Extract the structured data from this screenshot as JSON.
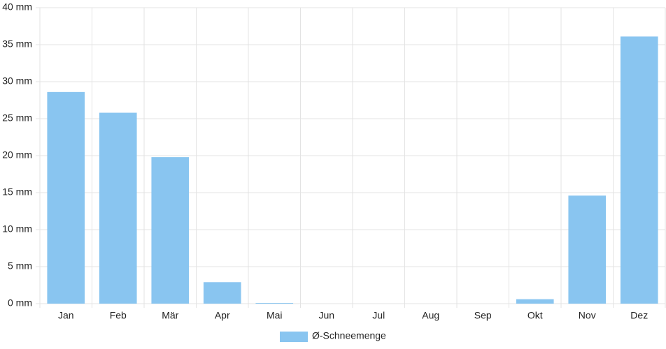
{
  "chart_data": {
    "type": "bar",
    "categories": [
      "Jan",
      "Feb",
      "Mär",
      "Apr",
      "Mai",
      "Jun",
      "Jul",
      "Aug",
      "Sep",
      "Okt",
      "Nov",
      "Dez"
    ],
    "series": [
      {
        "name": "Ø-Schneemenge",
        "color": "#89c5f0",
        "values": [
          28.6,
          25.8,
          19.8,
          2.9,
          0.1,
          0,
          0,
          0,
          0,
          0.6,
          14.6,
          36.1
        ]
      }
    ],
    "ylim": [
      0,
      40
    ],
    "yticks": [
      {
        "value": 0,
        "label": "0 mm"
      },
      {
        "value": 5,
        "label": "5 mm"
      },
      {
        "value": 10,
        "label": "10 mm"
      },
      {
        "value": 15,
        "label": "15 mm"
      },
      {
        "value": 20,
        "label": "20 mm"
      },
      {
        "value": 25,
        "label": "25 mm"
      },
      {
        "value": 30,
        "label": "30 mm"
      },
      {
        "value": 35,
        "label": "35 mm"
      },
      {
        "value": 40,
        "label": "40 mm"
      }
    ],
    "grid": true,
    "legend": "bottom"
  }
}
